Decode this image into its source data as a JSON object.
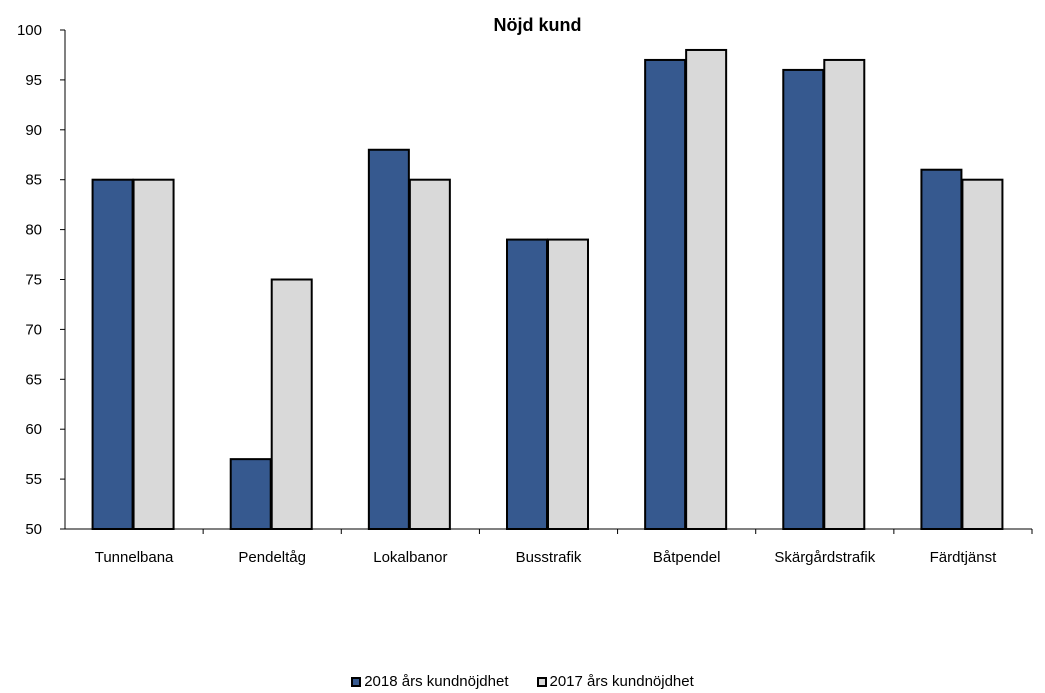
{
  "chart_data": {
    "type": "bar",
    "title": "Nöjd kund",
    "categories": [
      "Tunnelbana",
      "Pendeltåg",
      "Lokalbanor",
      "Busstrafik",
      "Båtpendel",
      "Skärgårdstrafik",
      "Färdtjänst"
    ],
    "series": [
      {
        "name": "2018 års kundnöjdhet",
        "color": "#36598f",
        "values": [
          85,
          57,
          88,
          79,
          97,
          96,
          86
        ]
      },
      {
        "name": "2017 års kundnöjdhet",
        "color": "#d9d9d9",
        "values": [
          85,
          75,
          85,
          79,
          98,
          97,
          85
        ]
      }
    ],
    "ylim": [
      50,
      100
    ],
    "yticks": [
      "50",
      "55",
      "60",
      "65",
      "70",
      "75",
      "80",
      "85",
      "90",
      "95",
      "100"
    ],
    "xlabel": "",
    "ylabel": "",
    "grid": false,
    "legend_position": "bottom"
  }
}
